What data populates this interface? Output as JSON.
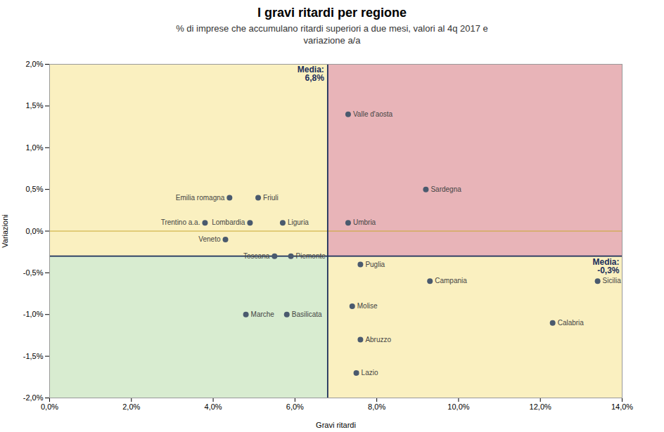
{
  "chart_data": {
    "type": "scatter",
    "title": "I gravi ritardi per regione",
    "subtitle": "% di imprese che accumulano ritardi superiori a due mesi, valori al 4q 2017 e\nvariazione a/a",
    "xlabel": "Gravi ritardi",
    "ylabel": "Variazioni",
    "xlim": [
      0.0,
      0.14
    ],
    "ylim": [
      -0.02,
      0.02
    ],
    "xticks": [
      {
        "value": 0.0,
        "label": "0,0%"
      },
      {
        "value": 0.02,
        "label": "2,0%"
      },
      {
        "value": 0.04,
        "label": "4,0%"
      },
      {
        "value": 0.06,
        "label": "6,0%"
      },
      {
        "value": 0.08,
        "label": "8,0%"
      },
      {
        "value": 0.1,
        "label": "10,0%"
      },
      {
        "value": 0.12,
        "label": "12,0%"
      },
      {
        "value": 0.14,
        "label": "14,0%"
      }
    ],
    "yticks": [
      {
        "value": -0.02,
        "label": "-2,0%"
      },
      {
        "value": -0.015,
        "label": "-1,5%"
      },
      {
        "value": -0.01,
        "label": "-1,0%"
      },
      {
        "value": -0.005,
        "label": "-0,5%"
      },
      {
        "value": 0.0,
        "label": "0,0%"
      },
      {
        "value": 0.005,
        "label": "0,5%"
      },
      {
        "value": 0.01,
        "label": "1,0%"
      },
      {
        "value": 0.015,
        "label": "1,5%"
      },
      {
        "value": 0.02,
        "label": "2,0%"
      }
    ],
    "grid": false,
    "color": "#4a5a6e",
    "points": [
      {
        "label": "Valle d'aosta",
        "x": 0.073,
        "y": 0.014
      },
      {
        "label": "Sardegna",
        "x": 0.092,
        "y": 0.005
      },
      {
        "label": "Umbria",
        "x": 0.073,
        "y": 0.001
      },
      {
        "label": "Emilia romagna",
        "x": 0.044,
        "y": 0.004
      },
      {
        "label": "Friuli",
        "x": 0.051,
        "y": 0.004
      },
      {
        "label": "Trentino a.a.",
        "x": 0.038,
        "y": 0.001
      },
      {
        "label": "Lombardia",
        "x": 0.049,
        "y": 0.001
      },
      {
        "label": "Liguria",
        "x": 0.057,
        "y": 0.001
      },
      {
        "label": "Veneto",
        "x": 0.043,
        "y": -0.001
      },
      {
        "label": "Toscana",
        "x": 0.055,
        "y": -0.003
      },
      {
        "label": "Piemonte",
        "x": 0.059,
        "y": -0.003
      },
      {
        "label": "Puglia",
        "x": 0.076,
        "y": -0.004
      },
      {
        "label": "Campania",
        "x": 0.093,
        "y": -0.006
      },
      {
        "label": "Sicilia",
        "x": 0.134,
        "y": -0.006
      },
      {
        "label": "Molise",
        "x": 0.074,
        "y": -0.009
      },
      {
        "label": "Marche",
        "x": 0.048,
        "y": -0.01
      },
      {
        "label": "Basilicata",
        "x": 0.058,
        "y": -0.01
      },
      {
        "label": "Abruzzo",
        "x": 0.076,
        "y": -0.013
      },
      {
        "label": "Lazio",
        "x": 0.075,
        "y": -0.017
      },
      {
        "label": "Calabria",
        "x": 0.123,
        "y": -0.011
      }
    ],
    "mean_x": 0.068,
    "mean_y": -0.003,
    "mean_x_label": "Media:\n6,8%",
    "mean_y_label": "Media:\n-0,3%",
    "mean_line_color": "#1a2e5a",
    "zero_line_color": "#c8a830",
    "quadrant_colors": {
      "top_left": "#faf0c0",
      "top_right": "#e8b4b8",
      "bottom_left": "#d8ecd0",
      "bottom_right": "#faf0c0"
    }
  }
}
